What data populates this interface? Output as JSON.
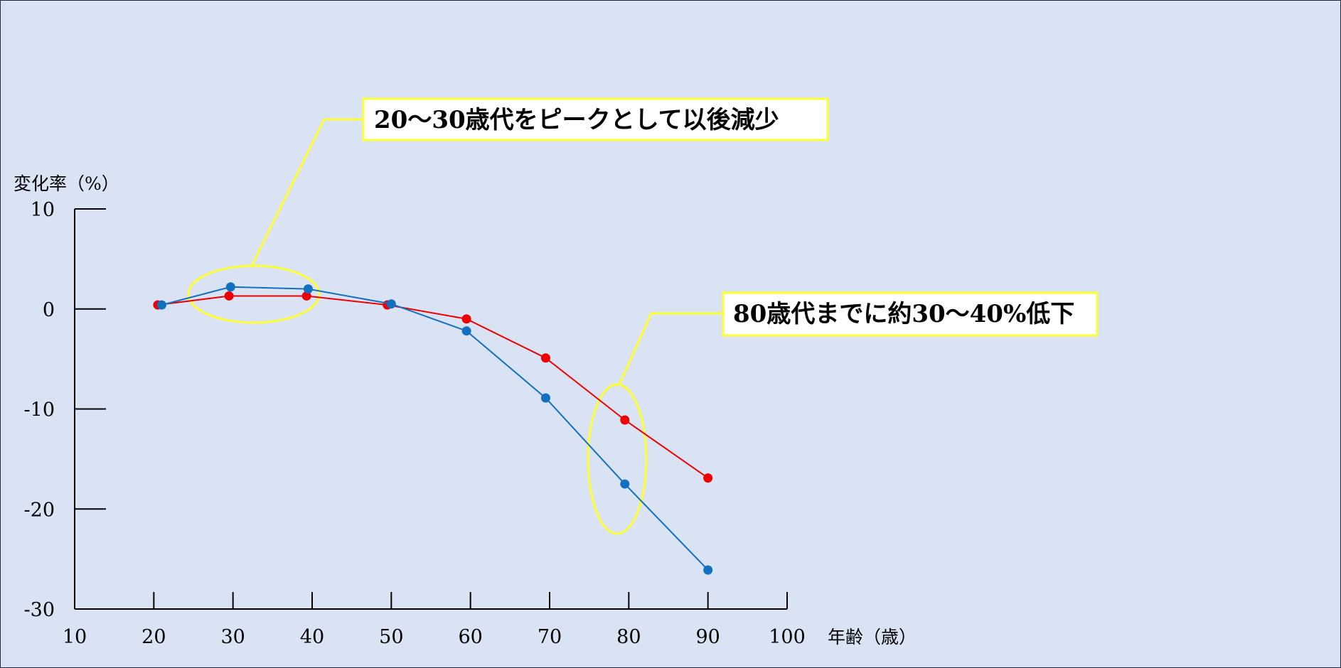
{
  "chart_data": {
    "type": "line",
    "title": "",
    "xlabel": "年齢（歳）",
    "ylabel": "変化率（%）",
    "xlim": [
      10,
      100
    ],
    "ylim": [
      -30,
      10
    ],
    "x_ticks": [
      10,
      20,
      30,
      40,
      50,
      60,
      70,
      80,
      90,
      100
    ],
    "y_ticks": [
      10,
      0,
      -10,
      -20,
      -30
    ],
    "grid": false,
    "legend": "none",
    "series": [
      {
        "color": "#ee0000",
        "points": [
          [
            20.5,
            0.4
          ],
          [
            29.5,
            1.3
          ],
          [
            39.3,
            1.3
          ],
          [
            49.5,
            0.4
          ],
          [
            59.5,
            -1.0
          ],
          [
            69.5,
            -4.9
          ],
          [
            79.5,
            -11.1
          ],
          [
            90,
            -16.9
          ]
        ]
      },
      {
        "color": "#1170c0",
        "points": [
          [
            21,
            0.4
          ],
          [
            29.7,
            2.2
          ],
          [
            39.5,
            2.0
          ],
          [
            50,
            0.5
          ],
          [
            59.5,
            -2.2
          ],
          [
            69.5,
            -8.9
          ],
          [
            79.5,
            -17.5
          ],
          [
            90,
            -26.1
          ]
        ]
      }
    ],
    "annotations": [
      {
        "text": "20〜30歳代をピークとして以後減少",
        "target": "20〜30歳代付近"
      },
      {
        "text": "80歳代までに約30〜40%低下",
        "target": "80歳付近"
      }
    ]
  },
  "colors": {
    "background": "#dae3f3",
    "frame": "#1c2a45",
    "axis": "#000000",
    "highlight": "#ffff33"
  }
}
